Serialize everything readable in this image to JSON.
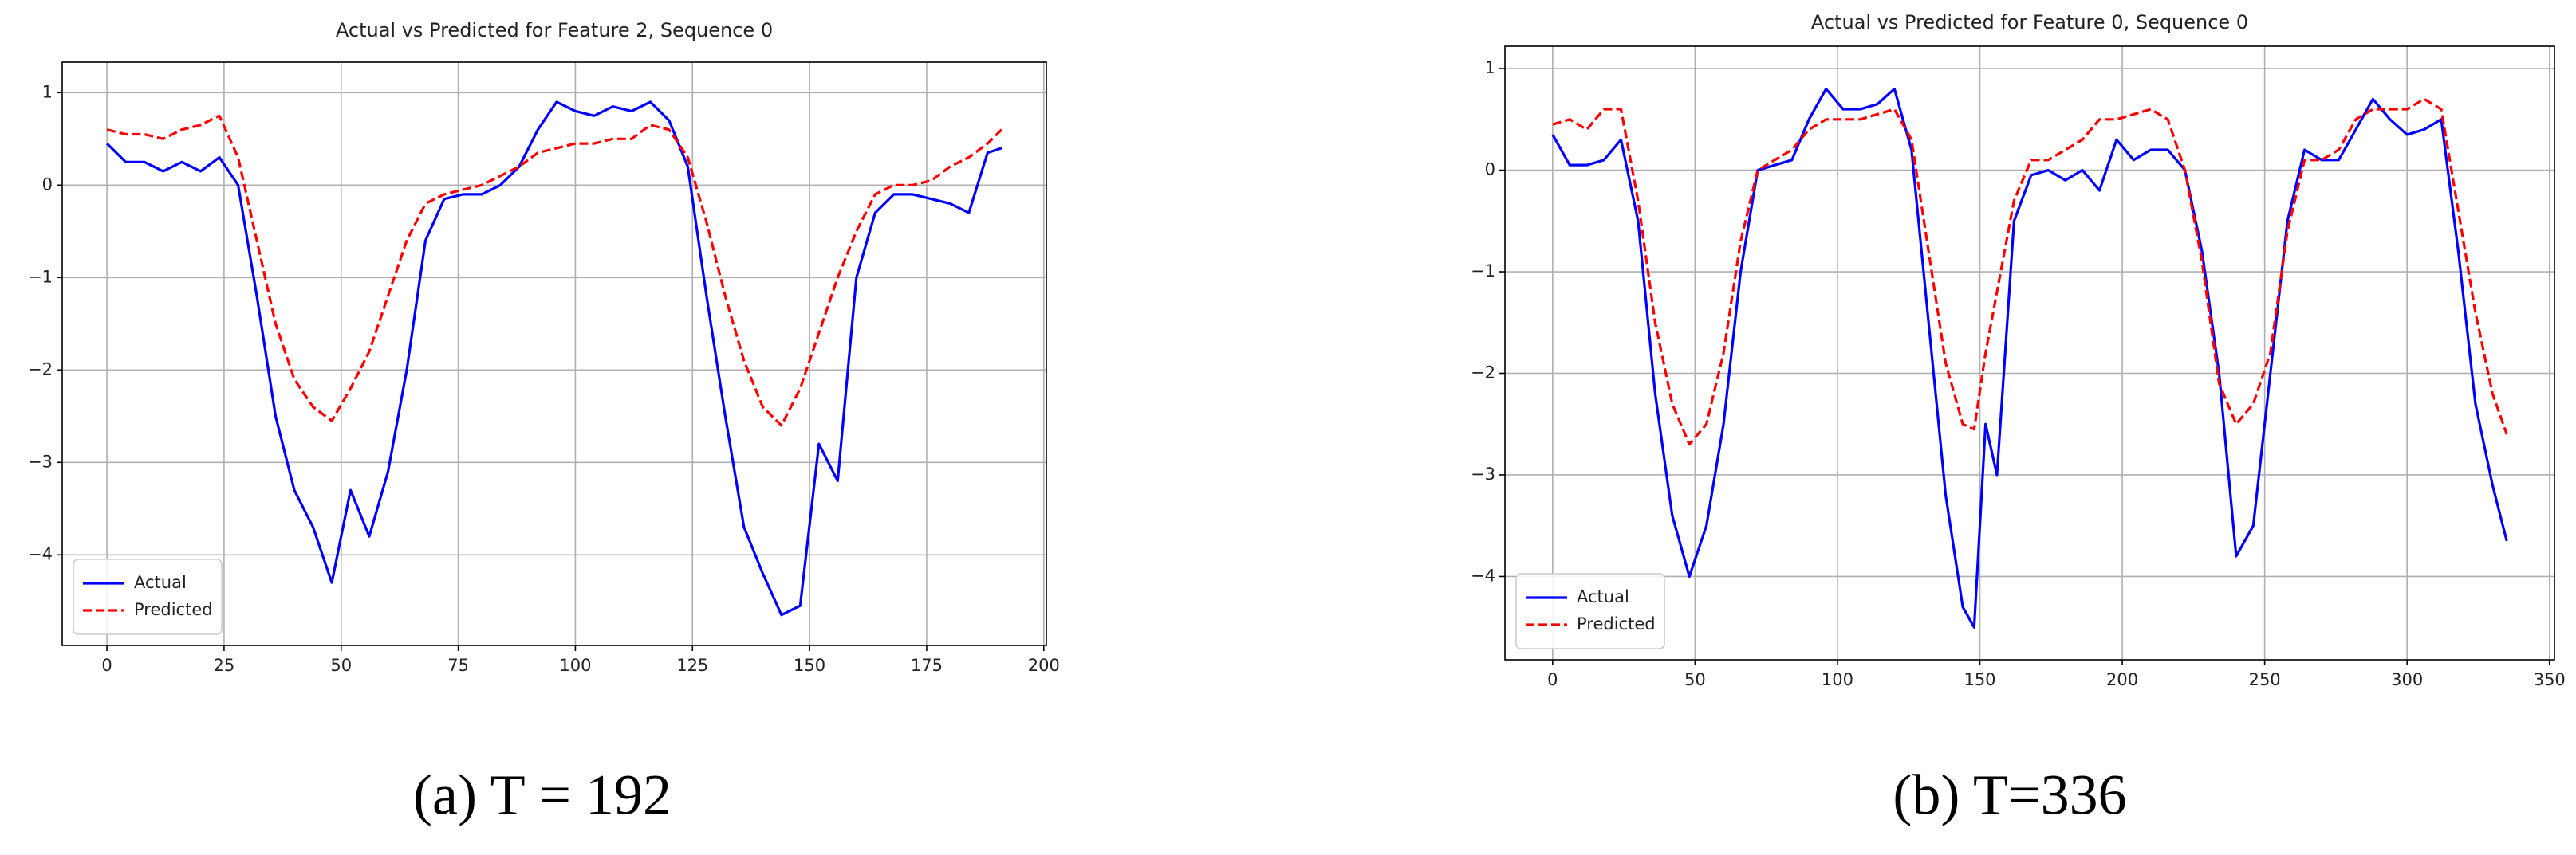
{
  "chart_data": [
    {
      "type": "line",
      "title": "Actual vs Predicted for Feature 2, Sequence 0",
      "caption": "(a) T = 192",
      "grid": true,
      "legend": "lower left",
      "x": [
        0,
        4,
        8,
        12,
        16,
        20,
        24,
        28,
        32,
        36,
        40,
        44,
        48,
        52,
        56,
        60,
        64,
        68,
        72,
        76,
        80,
        84,
        88,
        92,
        96,
        100,
        104,
        108,
        112,
        116,
        120,
        124,
        128,
        132,
        136,
        140,
        144,
        148,
        152,
        156,
        160,
        164,
        168,
        172,
        176,
        180,
        184,
        188,
        191
      ],
      "series": [
        {
          "name": "Actual",
          "color": "#0000ff",
          "linestyle": "solid",
          "values": [
            0.45,
            0.25,
            0.25,
            0.15,
            0.25,
            0.15,
            0.3,
            0.0,
            -1.2,
            -2.5,
            -3.3,
            -3.7,
            -4.3,
            -3.3,
            -3.8,
            -3.1,
            -2.0,
            -0.6,
            -0.15,
            -0.1,
            -0.1,
            0.0,
            0.2,
            0.6,
            0.9,
            0.8,
            0.75,
            0.85,
            0.8,
            0.9,
            0.7,
            0.2,
            -1.2,
            -2.5,
            -3.7,
            -4.2,
            -4.65,
            -4.55,
            -2.8,
            -3.2,
            -1.0,
            -0.3,
            -0.1,
            -0.1,
            -0.15,
            -0.2,
            -0.3,
            0.35,
            0.4
          ]
        },
        {
          "name": "Predicted",
          "color": "#ff0000",
          "linestyle": "dashed",
          "values": [
            0.6,
            0.55,
            0.55,
            0.5,
            0.6,
            0.65,
            0.75,
            0.3,
            -0.6,
            -1.5,
            -2.1,
            -2.4,
            -2.55,
            -2.2,
            -1.8,
            -1.2,
            -0.6,
            -0.2,
            -0.1,
            -0.05,
            0.0,
            0.1,
            0.2,
            0.35,
            0.4,
            0.45,
            0.45,
            0.5,
            0.5,
            0.65,
            0.6,
            0.3,
            -0.4,
            -1.2,
            -1.9,
            -2.4,
            -2.6,
            -2.2,
            -1.6,
            -1.0,
            -0.5,
            -0.1,
            0.0,
            0.0,
            0.05,
            0.2,
            0.3,
            0.45,
            0.6
          ]
        }
      ],
      "xlim": [
        -9.55,
        200.55
      ],
      "xticks": [
        0,
        25,
        50,
        75,
        100,
        125,
        150,
        175,
        200
      ],
      "ylim": [
        -4.98,
        1.33
      ],
      "yticks": [
        {
          "value": -4,
          "label": "−4"
        },
        {
          "value": -3,
          "label": "−3"
        },
        {
          "value": -2,
          "label": "−2"
        },
        {
          "value": -1,
          "label": "−1"
        },
        0,
        1
      ]
    },
    {
      "type": "line",
      "title": "Actual vs Predicted for Feature 0, Sequence 0",
      "caption": "(b) T=336",
      "grid": true,
      "legend": "lower left",
      "x": [
        0,
        6,
        12,
        18,
        24,
        30,
        36,
        42,
        48,
        54,
        60,
        66,
        72,
        78,
        84,
        90,
        96,
        102,
        108,
        114,
        120,
        126,
        132,
        138,
        144,
        148,
        152,
        156,
        162,
        168,
        174,
        180,
        186,
        192,
        198,
        204,
        210,
        216,
        222,
        228,
        234,
        240,
        246,
        252,
        258,
        264,
        270,
        276,
        282,
        288,
        294,
        300,
        306,
        312,
        318,
        324,
        330,
        335
      ],
      "series": [
        {
          "name": "Actual",
          "color": "#0000ff",
          "linestyle": "solid",
          "values": [
            0.35,
            0.05,
            0.05,
            0.1,
            0.3,
            -0.5,
            -2.2,
            -3.4,
            -4.0,
            -3.5,
            -2.5,
            -1.0,
            0.0,
            0.05,
            0.1,
            0.5,
            0.8,
            0.6,
            0.6,
            0.65,
            0.8,
            0.2,
            -1.5,
            -3.2,
            -4.3,
            -4.5,
            -2.5,
            -3.0,
            -0.5,
            -0.05,
            0.0,
            -0.1,
            0.0,
            -0.2,
            0.3,
            0.1,
            0.2,
            0.2,
            0.0,
            -0.8,
            -2.0,
            -3.8,
            -3.5,
            -2.0,
            -0.5,
            0.2,
            0.1,
            0.1,
            0.4,
            0.7,
            0.5,
            0.35,
            0.4,
            0.5,
            -0.8,
            -2.3,
            -3.1,
            -3.65
          ]
        },
        {
          "name": "Predicted",
          "color": "#ff0000",
          "linestyle": "dashed",
          "values": [
            0.45,
            0.5,
            0.4,
            0.6,
            0.6,
            -0.3,
            -1.5,
            -2.3,
            -2.7,
            -2.5,
            -1.8,
            -0.7,
            0.0,
            0.1,
            0.2,
            0.4,
            0.5,
            0.5,
            0.5,
            0.55,
            0.6,
            0.3,
            -0.8,
            -1.9,
            -2.5,
            -2.55,
            -1.8,
            -1.2,
            -0.3,
            0.1,
            0.1,
            0.2,
            0.3,
            0.5,
            0.5,
            0.55,
            0.6,
            0.5,
            0.0,
            -0.9,
            -2.1,
            -2.5,
            -2.3,
            -1.8,
            -0.6,
            0.1,
            0.1,
            0.2,
            0.5,
            0.6,
            0.6,
            0.6,
            0.7,
            0.6,
            -0.4,
            -1.4,
            -2.2,
            -2.6
          ]
        }
      ],
      "xlim": [
        -16.75,
        351.75
      ],
      "xticks": [
        0,
        50,
        100,
        150,
        200,
        250,
        300,
        350
      ],
      "ylim": [
        -4.82,
        1.22
      ],
      "yticks": [
        {
          "value": -4,
          "label": "−4"
        },
        {
          "value": -3,
          "label": "−3"
        },
        {
          "value": -2,
          "label": "−2"
        },
        {
          "value": -1,
          "label": "−1"
        },
        0,
        1
      ]
    }
  ]
}
